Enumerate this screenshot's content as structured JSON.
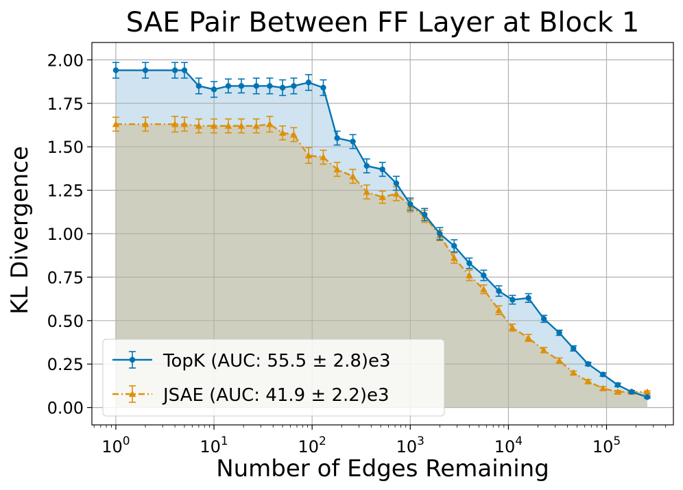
{
  "chart_data": {
    "type": "line",
    "title": "SAE Pair Between FF Layer at Block 1",
    "xlabel": "Number of Edges Remaining",
    "ylabel": "KL Divergence",
    "xscale": "log",
    "xlim": [
      0.57,
      480000
    ],
    "ylim": [
      -0.1,
      2.1
    ],
    "x_ticks": [
      1,
      10,
      100,
      1000,
      10000,
      100000
    ],
    "x_tick_labels": [
      {
        "base": "10",
        "exp": "0"
      },
      {
        "base": "10",
        "exp": "1"
      },
      {
        "base": "10",
        "exp": "2"
      },
      {
        "base": "10",
        "exp": "3"
      },
      {
        "base": "10",
        "exp": "4"
      },
      {
        "base": "10",
        "exp": "5"
      }
    ],
    "y_ticks": [
      0.0,
      0.25,
      0.5,
      0.75,
      1.0,
      1.25,
      1.5,
      1.75,
      2.0
    ],
    "y_tick_labels": [
      "0.00",
      "0.25",
      "0.50",
      "0.75",
      "1.00",
      "1.25",
      "1.50",
      "1.75",
      "2.00"
    ],
    "grid": true,
    "legend_position": "lower-left",
    "series": [
      {
        "name": "TopK (AUC: 55.5 ± 2.8)e3",
        "color": "#0173b2",
        "fill_color": "#cfe3f0",
        "marker": "circle",
        "linestyle": "solid",
        "x": [
          1,
          2,
          4,
          5,
          7,
          10,
          14,
          19,
          27,
          37,
          50,
          65,
          92,
          130,
          180,
          260,
          360,
          520,
          720,
          1000,
          1400,
          2000,
          2800,
          4000,
          5600,
          8000,
          11000,
          16000,
          23000,
          33000,
          46000,
          65000,
          92000,
          130000,
          180000,
          260000
        ],
        "y": [
          1.94,
          1.94,
          1.94,
          1.94,
          1.85,
          1.83,
          1.85,
          1.85,
          1.85,
          1.85,
          1.84,
          1.85,
          1.87,
          1.84,
          1.55,
          1.53,
          1.39,
          1.37,
          1.29,
          1.17,
          1.11,
          1.0,
          0.93,
          0.83,
          0.76,
          0.67,
          0.62,
          0.63,
          0.51,
          0.43,
          0.34,
          0.25,
          0.19,
          0.13,
          0.09,
          0.06
        ],
        "err": [
          0.045,
          0.045,
          0.045,
          0.045,
          0.045,
          0.045,
          0.04,
          0.04,
          0.045,
          0.045,
          0.045,
          0.045,
          0.045,
          0.045,
          0.04,
          0.04,
          0.04,
          0.04,
          0.04,
          0.035,
          0.035,
          0.035,
          0.035,
          0.03,
          0.03,
          0.03,
          0.025,
          0.025,
          0.02,
          0.015,
          0.015,
          0.01,
          0.01,
          0.01,
          0.008,
          0.006
        ]
      },
      {
        "name": "JSAE (AUC: 41.9 ± 2.2)e3",
        "color": "#de8f05",
        "fill_color": "#cfcfbf",
        "marker": "triangle",
        "linestyle": "dashdot",
        "x": [
          1,
          2,
          4,
          5,
          7,
          10,
          14,
          19,
          27,
          37,
          50,
          65,
          92,
          130,
          180,
          260,
          360,
          520,
          720,
          1000,
          1400,
          2000,
          2800,
          4000,
          5600,
          8000,
          11000,
          16000,
          23000,
          33000,
          46000,
          65000,
          92000,
          130000,
          180000,
          260000
        ],
        "y": [
          1.63,
          1.63,
          1.63,
          1.63,
          1.62,
          1.62,
          1.62,
          1.62,
          1.62,
          1.63,
          1.58,
          1.57,
          1.45,
          1.44,
          1.37,
          1.33,
          1.24,
          1.21,
          1.23,
          1.16,
          1.1,
          0.99,
          0.86,
          0.76,
          0.68,
          0.56,
          0.46,
          0.4,
          0.33,
          0.27,
          0.2,
          0.15,
          0.11,
          0.09,
          0.09,
          0.09
        ],
        "err": [
          0.04,
          0.04,
          0.045,
          0.04,
          0.04,
          0.04,
          0.04,
          0.04,
          0.04,
          0.045,
          0.04,
          0.04,
          0.045,
          0.04,
          0.04,
          0.04,
          0.04,
          0.035,
          0.04,
          0.035,
          0.035,
          0.03,
          0.03,
          0.03,
          0.025,
          0.025,
          0.02,
          0.02,
          0.015,
          0.015,
          0.01,
          0.01,
          0.01,
          0.008,
          0.008,
          0.006
        ]
      }
    ]
  }
}
